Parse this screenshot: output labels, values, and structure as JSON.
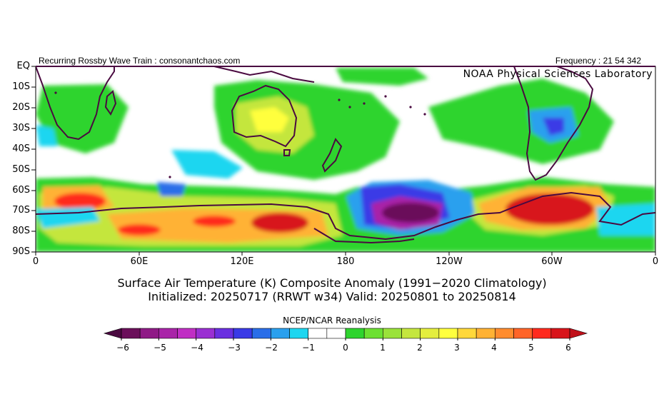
{
  "header": {
    "left": "Recurring Rossby Wave Train : consonantchaos.com",
    "right": "Frequency : 21 54 342",
    "lab": "NOAA Physical Sciences Laboratory"
  },
  "map": {
    "lat_labels": [
      "EQ",
      "10S",
      "20S",
      "30S",
      "40S",
      "50S",
      "60S",
      "70S",
      "80S",
      "90S"
    ],
    "lon_labels": [
      "0",
      "60E",
      "120E",
      "180",
      "120W",
      "60W",
      "0"
    ]
  },
  "title": {
    "line1": "Surface Air Temperature (K) Composite Anomaly (1991−2020 Climatology)",
    "line2": "Initialized: 20250717 (RRWT w34) Valid: 20250801 to 20250814"
  },
  "colorbar": {
    "title": "NCEP/NCAR Reanalysis",
    "labels": [
      "−6",
      "−5",
      "−4",
      "−3",
      "−2",
      "−1",
      "0",
      "1",
      "2",
      "3",
      "4",
      "5",
      "6"
    ],
    "colors": [
      "#6b0f5a",
      "#8f1a86",
      "#a924a8",
      "#c02ec4",
      "#9a2fd2",
      "#6a2fe0",
      "#3a3ae6",
      "#2a6ee8",
      "#2aa0ee",
      "#1ed6f0",
      "#ffffff",
      "#ffffff",
      "#2ed42e",
      "#6ce032",
      "#9ae23a",
      "#c4e63e",
      "#e4ee3e",
      "#ffff3e",
      "#ffd83a",
      "#ffb234",
      "#ff8c2e",
      "#ff6428",
      "#ff2a1e",
      "#d8141a"
    ],
    "end_low": "#4a0a40",
    "end_high": "#c0101a"
  }
}
